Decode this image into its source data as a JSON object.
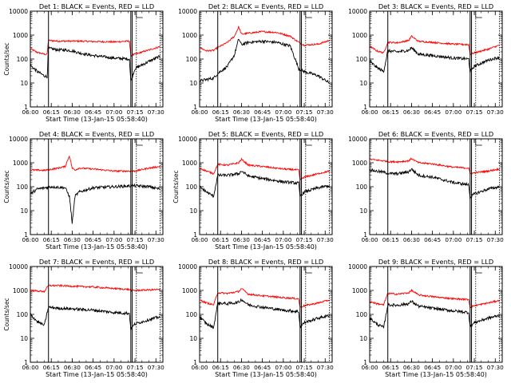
{
  "figure": {
    "panels": [
      {
        "title": "Det 1: BLACK = Events, RED = LLD",
        "ylabel": "Counts/sec",
        "xlabel": "Start Time (13-Jan-15 05:58:40)"
      },
      {
        "title": "Det 2: BLACK = Events, RED = LLD",
        "ylabel": "",
        "xlabel": "Start Time (13-Jan-15 05:58:40)"
      },
      {
        "title": "Det 3: BLACK = Events, RED = LLD",
        "ylabel": "",
        "xlabel": ""
      },
      {
        "title": "Det 4: BLACK = Events, RED = LLD",
        "ylabel": "Counts/sec",
        "xlabel": "Start Time (13-Jan-15 05:58:40)"
      },
      {
        "title": "Det 5: BLACK = Events, RED = LLD",
        "ylabel": "Counts/sec",
        "xlabel": "Start Time (13-Jan-15 05:58:40)"
      },
      {
        "title": "Det 6: BLACK = Events, RED = LLD",
        "ylabel": "",
        "xlabel": ""
      },
      {
        "title": "Det 7: BLACK = Events, RED = LLD",
        "ylabel": "Counts/sec",
        "xlabel": "Start Time (13-Jan-15 05:58:40)"
      },
      {
        "title": "Det 8: BLACK = Events, RED = LLD",
        "ylabel": "",
        "xlabel": "Start Time (13-Jan-15 05:58:40)"
      },
      {
        "title": "Det 9: BLACK = Events, RED = LLD",
        "ylabel": "",
        "xlabel": "Start Time (13-Jan-15 05:58:40)"
      }
    ]
  },
  "chart_data": [
    {
      "type": "line",
      "title": "Det 1: BLACK = Events, RED = LLD",
      "xlabel": "Start Time (13-Jan-15 05:58:40)",
      "ylabel": "Counts/sec",
      "y_scale": "log",
      "xlim": [
        "06:00",
        "07:35"
      ],
      "ylim": [
        1,
        10000
      ],
      "x_tick_labels": [
        "06:00",
        "06:15",
        "06:30",
        "06:45",
        "07:00",
        "07:15",
        "07:30"
      ],
      "y_tick_labels": [
        "1",
        "10",
        "100",
        "1000",
        "10000"
      ],
      "vertical_markers_solid": [
        "06:13",
        "07:12",
        "07:13"
      ],
      "vertical_markers_dotted": [
        "07:16",
        "07:33"
      ],
      "series": [
        {
          "color": "#ff0000",
          "x": [
            "06:00",
            "06:05",
            "06:10",
            "06:12",
            "06:13",
            "06:20",
            "06:25",
            "06:30",
            "06:35",
            "06:45",
            "07:00",
            "07:11",
            "07:12",
            "07:15",
            "07:25",
            "07:33"
          ],
          "values": [
            270,
            190,
            160,
            160,
            600,
            560,
            560,
            560,
            560,
            540,
            520,
            560,
            140,
            160,
            240,
            330
          ]
        },
        {
          "color": "#000000",
          "x": [
            "06:00",
            "06:05",
            "06:10",
            "06:12",
            "06:13",
            "06:20",
            "06:25",
            "06:30",
            "06:35",
            "06:45",
            "07:00",
            "07:11",
            "07:12",
            "07:15",
            "07:25",
            "07:33"
          ],
          "values": [
            55,
            30,
            20,
            18,
            280,
            240,
            240,
            220,
            180,
            140,
            110,
            100,
            12,
            40,
            80,
            130
          ]
        }
      ]
    },
    {
      "type": "line",
      "title": "Det 2: BLACK = Events, RED = LLD",
      "xlabel": "Start Time (13-Jan-15 05:58:40)",
      "y_scale": "log",
      "xlim": [
        "06:00",
        "07:35"
      ],
      "ylim": [
        1,
        10000
      ],
      "x_tick_labels": [
        "06:00",
        "06:15",
        "06:30",
        "06:45",
        "07:00",
        "07:15",
        "07:30"
      ],
      "y_tick_labels": [
        "1",
        "10",
        "100",
        "1000",
        "10000"
      ],
      "vertical_markers_solid": [
        "06:13",
        "07:12",
        "07:13"
      ],
      "vertical_markers_dotted": [
        "07:16",
        "07:33"
      ],
      "series": [
        {
          "color": "#ff0000",
          "x": [
            "06:00",
            "06:05",
            "06:10",
            "06:13",
            "06:20",
            "06:25",
            "06:28",
            "06:30",
            "06:35",
            "06:45",
            "06:55",
            "07:05",
            "07:11",
            "07:15",
            "07:25",
            "07:33"
          ],
          "values": [
            300,
            220,
            230,
            300,
            500,
            900,
            2200,
            1100,
            1200,
            1400,
            1300,
            900,
            500,
            380,
            420,
            600
          ]
        },
        {
          "color": "#000000",
          "x": [
            "06:00",
            "06:05",
            "06:10",
            "06:13",
            "06:20",
            "06:25",
            "06:28",
            "06:30",
            "06:35",
            "06:45",
            "06:55",
            "07:05",
            "07:11",
            "07:15",
            "07:25",
            "07:33"
          ],
          "values": [
            12,
            14,
            16,
            25,
            50,
            150,
            700,
            400,
            500,
            550,
            500,
            350,
            40,
            30,
            20,
            10
          ]
        }
      ]
    },
    {
      "type": "line",
      "title": "Det 3: BLACK = Events, RED = LLD",
      "y_scale": "log",
      "xlim": [
        "06:00",
        "07:35"
      ],
      "ylim": [
        1,
        10000
      ],
      "x_tick_labels": [
        "06:00",
        "06:15",
        "06:30",
        "06:45",
        "07:00",
        "07:15",
        "07:30"
      ],
      "y_tick_labels": [
        "1",
        "10",
        "100",
        "1000",
        "10000"
      ],
      "vertical_markers_solid": [
        "06:13",
        "07:12",
        "07:13"
      ],
      "vertical_markers_dotted": [
        "07:16",
        "07:33"
      ],
      "series": [
        {
          "color": "#ff0000",
          "x": [
            "06:00",
            "06:05",
            "06:10",
            "06:13",
            "06:20",
            "06:28",
            "06:30",
            "06:35",
            "06:45",
            "07:00",
            "07:11",
            "07:12",
            "07:15",
            "07:25",
            "07:33"
          ],
          "values": [
            350,
            220,
            180,
            500,
            480,
            600,
            900,
            550,
            500,
            420,
            400,
            160,
            180,
            260,
            380
          ]
        },
        {
          "color": "#000000",
          "x": [
            "06:00",
            "06:05",
            "06:10",
            "06:13",
            "06:20",
            "06:28",
            "06:30",
            "06:35",
            "06:45",
            "07:00",
            "07:11",
            "07:12",
            "07:15",
            "07:25",
            "07:33"
          ],
          "values": [
            80,
            45,
            30,
            220,
            200,
            230,
            300,
            160,
            140,
            110,
            100,
            30,
            50,
            90,
            120
          ]
        }
      ]
    },
    {
      "type": "line",
      "title": "Det 4: BLACK = Events, RED = LLD",
      "xlabel": "Start Time (13-Jan-15 05:58:40)",
      "ylabel": "Counts/sec",
      "y_scale": "log",
      "xlim": [
        "06:00",
        "07:35"
      ],
      "ylim": [
        1,
        10000
      ],
      "x_tick_labels": [
        "06:00",
        "06:15",
        "06:30",
        "06:45",
        "07:00",
        "07:15",
        "07:30"
      ],
      "y_tick_labels": [
        "1",
        "10",
        "100",
        "1000",
        "10000"
      ],
      "vertical_markers_solid": [
        "06:13",
        "07:12",
        "07:13"
      ],
      "vertical_markers_dotted": [
        "07:16",
        "07:33"
      ],
      "series": [
        {
          "color": "#ff0000",
          "x": [
            "06:00",
            "06:10",
            "06:20",
            "06:25",
            "06:28",
            "06:30",
            "06:32",
            "06:35",
            "06:45",
            "07:00",
            "07:15",
            "07:25",
            "07:33"
          ],
          "values": [
            500,
            480,
            600,
            700,
            2000,
            600,
            500,
            600,
            550,
            450,
            450,
            600,
            700
          ]
        },
        {
          "color": "#000000",
          "x": [
            "06:00",
            "06:05",
            "06:15",
            "06:25",
            "06:28",
            "06:30",
            "06:32",
            "06:35",
            "06:45",
            "07:00",
            "07:15",
            "07:25",
            "07:33"
          ],
          "values": [
            50,
            80,
            100,
            90,
            40,
            3,
            40,
            60,
            90,
            100,
            110,
            100,
            80
          ]
        }
      ]
    },
    {
      "type": "line",
      "title": "Det 5: BLACK = Events, RED = LLD",
      "xlabel": "Start Time (13-Jan-15 05:58:40)",
      "ylabel": "Counts/sec",
      "y_scale": "log",
      "xlim": [
        "06:00",
        "07:35"
      ],
      "ylim": [
        1,
        10000
      ],
      "x_tick_labels": [
        "06:00",
        "06:15",
        "06:30",
        "06:45",
        "07:00",
        "07:15",
        "07:30"
      ],
      "y_tick_labels": [
        "1",
        "10",
        "100",
        "1000",
        "10000"
      ],
      "vertical_markers_solid": [
        "06:13",
        "07:12",
        "07:13"
      ],
      "vertical_markers_dotted": [
        "07:16",
        "07:33"
      ],
      "series": [
        {
          "color": "#ff0000",
          "x": [
            "06:00",
            "06:05",
            "06:10",
            "06:13",
            "06:20",
            "06:28",
            "06:30",
            "06:35",
            "06:45",
            "07:00",
            "07:11",
            "07:12",
            "07:15",
            "07:25",
            "07:33"
          ],
          "values": [
            600,
            450,
            350,
            850,
            800,
            1000,
            1400,
            800,
            700,
            550,
            500,
            200,
            250,
            350,
            450
          ]
        },
        {
          "color": "#000000",
          "x": [
            "06:00",
            "06:05",
            "06:10",
            "06:13",
            "06:20",
            "06:28",
            "06:30",
            "06:35",
            "06:45",
            "07:00",
            "07:11",
            "07:12",
            "07:15",
            "07:25",
            "07:33"
          ],
          "values": [
            100,
            60,
            40,
            300,
            300,
            350,
            450,
            280,
            220,
            160,
            140,
            40,
            60,
            90,
            110
          ]
        }
      ]
    },
    {
      "type": "line",
      "title": "Det 6: BLACK = Events, RED = LLD",
      "y_scale": "log",
      "xlim": [
        "06:00",
        "07:35"
      ],
      "ylim": [
        1,
        10000
      ],
      "x_tick_labels": [
        "06:00",
        "06:15",
        "06:30",
        "06:45",
        "07:00",
        "07:15",
        "07:30"
      ],
      "y_tick_labels": [
        "1",
        "10",
        "100",
        "1000",
        "10000"
      ],
      "vertical_markers_solid": [
        "06:13",
        "07:12",
        "07:13"
      ],
      "vertical_markers_dotted": [
        "07:16",
        "07:33"
      ],
      "series": [
        {
          "color": "#ff0000",
          "x": [
            "06:00",
            "06:10",
            "06:15",
            "06:20",
            "06:28",
            "06:30",
            "06:35",
            "06:45",
            "07:00",
            "07:11",
            "07:12",
            "07:15",
            "07:25",
            "07:33"
          ],
          "values": [
            1400,
            1200,
            1100,
            1100,
            1200,
            1500,
            1000,
            900,
            650,
            600,
            350,
            380,
            450,
            550
          ]
        },
        {
          "color": "#000000",
          "x": [
            "06:00",
            "06:10",
            "06:15",
            "06:20",
            "06:28",
            "06:30",
            "06:35",
            "06:45",
            "07:00",
            "07:11",
            "07:12",
            "07:15",
            "07:25",
            "07:33"
          ],
          "values": [
            500,
            400,
            350,
            350,
            420,
            550,
            300,
            250,
            150,
            120,
            35,
            50,
            80,
            100
          ]
        }
      ]
    },
    {
      "type": "line",
      "title": "Det 7: BLACK = Events, RED = LLD",
      "xlabel": "Start Time (13-Jan-15 05:58:40)",
      "ylabel": "Counts/sec",
      "y_scale": "log",
      "xlim": [
        "06:00",
        "07:35"
      ],
      "ylim": [
        1,
        10000
      ],
      "x_tick_labels": [
        "06:00",
        "06:15",
        "06:30",
        "06:45",
        "07:00",
        "07:15",
        "07:30"
      ],
      "y_tick_labels": [
        "1",
        "10",
        "100",
        "1000",
        "10000"
      ],
      "vertical_markers_solid": [
        "06:13",
        "07:12",
        "07:13"
      ],
      "vertical_markers_dotted": [
        "07:16",
        "07:33"
      ],
      "series": [
        {
          "color": "#ff0000",
          "x": [
            "06:00",
            "06:10",
            "06:13",
            "06:20",
            "06:30",
            "06:45",
            "07:00",
            "07:11",
            "07:12",
            "07:15",
            "07:25",
            "07:33"
          ],
          "values": [
            1000,
            900,
            1600,
            1600,
            1500,
            1400,
            1200,
            1100,
            1000,
            1000,
            1050,
            1100
          ]
        },
        {
          "color": "#000000",
          "x": [
            "06:00",
            "06:05",
            "06:10",
            "06:13",
            "06:20",
            "06:30",
            "06:45",
            "07:00",
            "07:11",
            "07:12",
            "07:15",
            "07:25",
            "07:33"
          ],
          "values": [
            100,
            50,
            35,
            200,
            180,
            170,
            150,
            120,
            110,
            25,
            40,
            60,
            80
          ]
        }
      ]
    },
    {
      "type": "line",
      "title": "Det 8: BLACK = Events, RED = LLD",
      "xlabel": "Start Time (13-Jan-15 05:58:40)",
      "y_scale": "log",
      "xlim": [
        "06:00",
        "07:35"
      ],
      "ylim": [
        1,
        10000
      ],
      "x_tick_labels": [
        "06:00",
        "06:15",
        "06:30",
        "06:45",
        "07:00",
        "07:15",
        "07:30"
      ],
      "y_tick_labels": [
        "1",
        "10",
        "100",
        "1000",
        "10000"
      ],
      "vertical_markers_solid": [
        "06:13",
        "07:12",
        "07:13"
      ],
      "vertical_markers_dotted": [
        "07:16",
        "07:33"
      ],
      "series": [
        {
          "color": "#ff0000",
          "x": [
            "06:00",
            "06:05",
            "06:10",
            "06:13",
            "06:20",
            "06:28",
            "06:30",
            "06:35",
            "06:45",
            "07:00",
            "07:11",
            "07:12",
            "07:15",
            "07:25",
            "07:33"
          ],
          "values": [
            400,
            300,
            250,
            800,
            750,
            900,
            1200,
            700,
            600,
            500,
            450,
            200,
            230,
            300,
            400
          ]
        },
        {
          "color": "#000000",
          "x": [
            "06:00",
            "06:05",
            "06:10",
            "06:13",
            "06:20",
            "06:28",
            "06:30",
            "06:35",
            "06:45",
            "07:00",
            "07:11",
            "07:12",
            "07:15",
            "07:25",
            "07:33"
          ],
          "values": [
            80,
            40,
            28,
            300,
            280,
            320,
            420,
            250,
            200,
            150,
            130,
            30,
            45,
            70,
            90
          ]
        }
      ]
    },
    {
      "type": "line",
      "title": "Det 9: BLACK = Events, RED = LLD",
      "xlabel": "Start Time (13-Jan-15 05:58:40)",
      "y_scale": "log",
      "xlim": [
        "06:00",
        "07:35"
      ],
      "ylim": [
        1,
        10000
      ],
      "x_tick_labels": [
        "06:00",
        "06:15",
        "06:30",
        "06:45",
        "07:00",
        "07:15",
        "07:30"
      ],
      "y_tick_labels": [
        "1",
        "10",
        "100",
        "1000",
        "10000"
      ],
      "vertical_markers_solid": [
        "06:13",
        "07:12",
        "07:13"
      ],
      "vertical_markers_dotted": [
        "07:16",
        "07:33"
      ],
      "series": [
        {
          "color": "#ff0000",
          "x": [
            "06:00",
            "06:05",
            "06:10",
            "06:13",
            "06:20",
            "06:28",
            "06:30",
            "06:35",
            "06:45",
            "07:00",
            "07:11",
            "07:12",
            "07:15",
            "07:25",
            "07:33"
          ],
          "values": [
            350,
            280,
            250,
            750,
            700,
            800,
            1000,
            650,
            550,
            450,
            420,
            200,
            230,
            300,
            380
          ]
        },
        {
          "color": "#000000",
          "x": [
            "06:00",
            "06:05",
            "06:10",
            "06:13",
            "06:20",
            "06:28",
            "06:30",
            "06:35",
            "06:45",
            "07:00",
            "07:11",
            "07:12",
            "07:15",
            "07:25",
            "07:33"
          ],
          "values": [
            70,
            40,
            28,
            250,
            240,
            280,
            350,
            220,
            180,
            140,
            120,
            30,
            45,
            70,
            90
          ]
        }
      ]
    }
  ]
}
